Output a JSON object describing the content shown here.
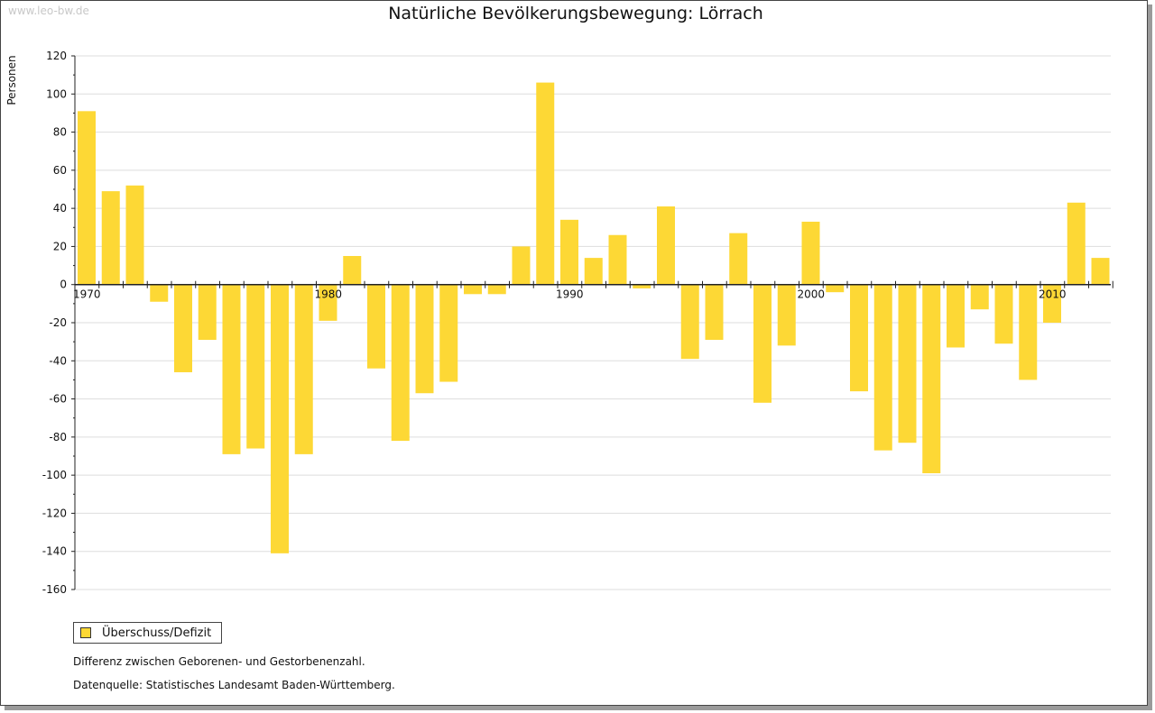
{
  "watermark": "www.leo-bw.de",
  "chart_data": {
    "type": "bar",
    "title": "Natürliche Bevölkerungsbewegung: Lörrach",
    "ylabel": "Personen",
    "xlabel": "",
    "ylim": [
      -160,
      120
    ],
    "yticks": [
      120,
      100,
      80,
      60,
      40,
      20,
      0,
      -20,
      -40,
      -60,
      -80,
      -100,
      -120,
      -140,
      -160
    ],
    "xtick_labels": [
      "1970",
      "1980",
      "1990",
      "2000",
      "2010"
    ],
    "grid": true,
    "bar_color": "#fdd835",
    "series": [
      {
        "name": "Überschuss/Defizit",
        "x": [
          1970,
          1971,
          1972,
          1973,
          1974,
          1975,
          1976,
          1977,
          1978,
          1979,
          1980,
          1981,
          1982,
          1983,
          1984,
          1985,
          1986,
          1987,
          1988,
          1989,
          1990,
          1991,
          1992,
          1993,
          1994,
          1995,
          1996,
          1997,
          1998,
          1999,
          2000,
          2001,
          2002,
          2003,
          2004,
          2005,
          2006,
          2007,
          2008,
          2009,
          2010,
          2011,
          2012
        ],
        "values": [
          91,
          49,
          52,
          -9,
          -46,
          -29,
          -89,
          -86,
          -141,
          -89,
          -19,
          15,
          -44,
          -82,
          -57,
          -51,
          -5,
          -5,
          20,
          106,
          34,
          14,
          26,
          -2,
          41,
          -39,
          -29,
          27,
          -62,
          -32,
          33,
          -4,
          -56,
          -87,
          -83,
          -99,
          -33,
          -13,
          -31,
          -50,
          -20,
          43,
          14
        ]
      }
    ],
    "legend_position": "bottom-left"
  },
  "notes": [
    "Differenz zwischen Geborenen- und Gestorbenenzahl.",
    "Datenquelle: Statistisches Landesamt Baden-Württemberg."
  ]
}
